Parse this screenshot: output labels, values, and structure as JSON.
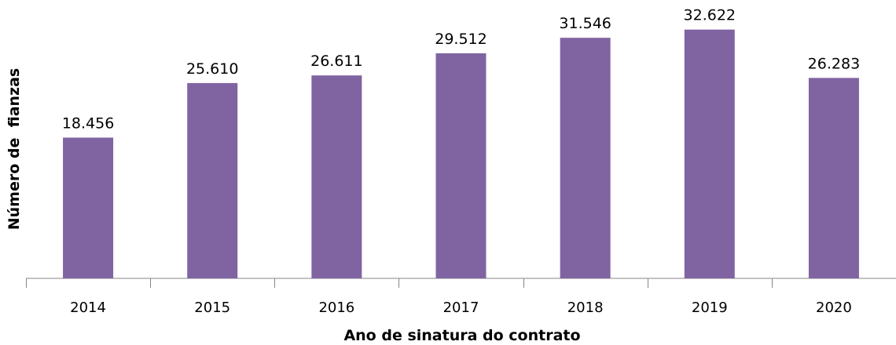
{
  "chart_data": {
    "type": "bar",
    "title": "",
    "xlabel": "Ano de sinatura do contrato",
    "ylabel": "Número de  fianzas",
    "categories": [
      "2014",
      "2015",
      "2016",
      "2017",
      "2018",
      "2019",
      "2020"
    ],
    "values": [
      18456,
      25610,
      26611,
      29512,
      31546,
      32622,
      26283
    ],
    "data_labels": [
      "18.456",
      "25.610",
      "26.611",
      "29.512",
      "31.546",
      "32.622",
      "26.283"
    ],
    "ylim": [
      0,
      36500
    ],
    "grid": false,
    "bar_color": "#8064A2"
  }
}
